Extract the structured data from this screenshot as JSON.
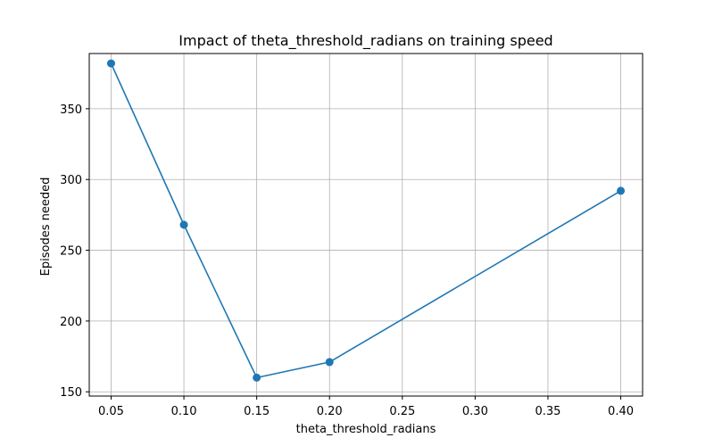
{
  "chart_data": {
    "type": "line",
    "title": "Impact of theta_threshold_radians on training speed",
    "xlabel": "theta_threshold_radians",
    "ylabel": "Episodes needed",
    "xlim": [
      0.035,
      0.415
    ],
    "ylim": [
      147,
      389
    ],
    "xticks": [
      0.05,
      0.1,
      0.15,
      0.2,
      0.25,
      0.3,
      0.35,
      0.4
    ],
    "xtick_labels": [
      "0.05",
      "0.10",
      "0.15",
      "0.20",
      "0.25",
      "0.30",
      "0.35",
      "0.40"
    ],
    "yticks": [
      150,
      200,
      250,
      300,
      350
    ],
    "ytick_labels": [
      "150",
      "200",
      "250",
      "300",
      "350"
    ],
    "grid": true,
    "series": [
      {
        "color": "#1f77b4",
        "marker": "circle",
        "x": [
          0.05,
          0.1,
          0.15,
          0.2,
          0.4
        ],
        "y": [
          382,
          268,
          160,
          171,
          292
        ]
      }
    ]
  }
}
